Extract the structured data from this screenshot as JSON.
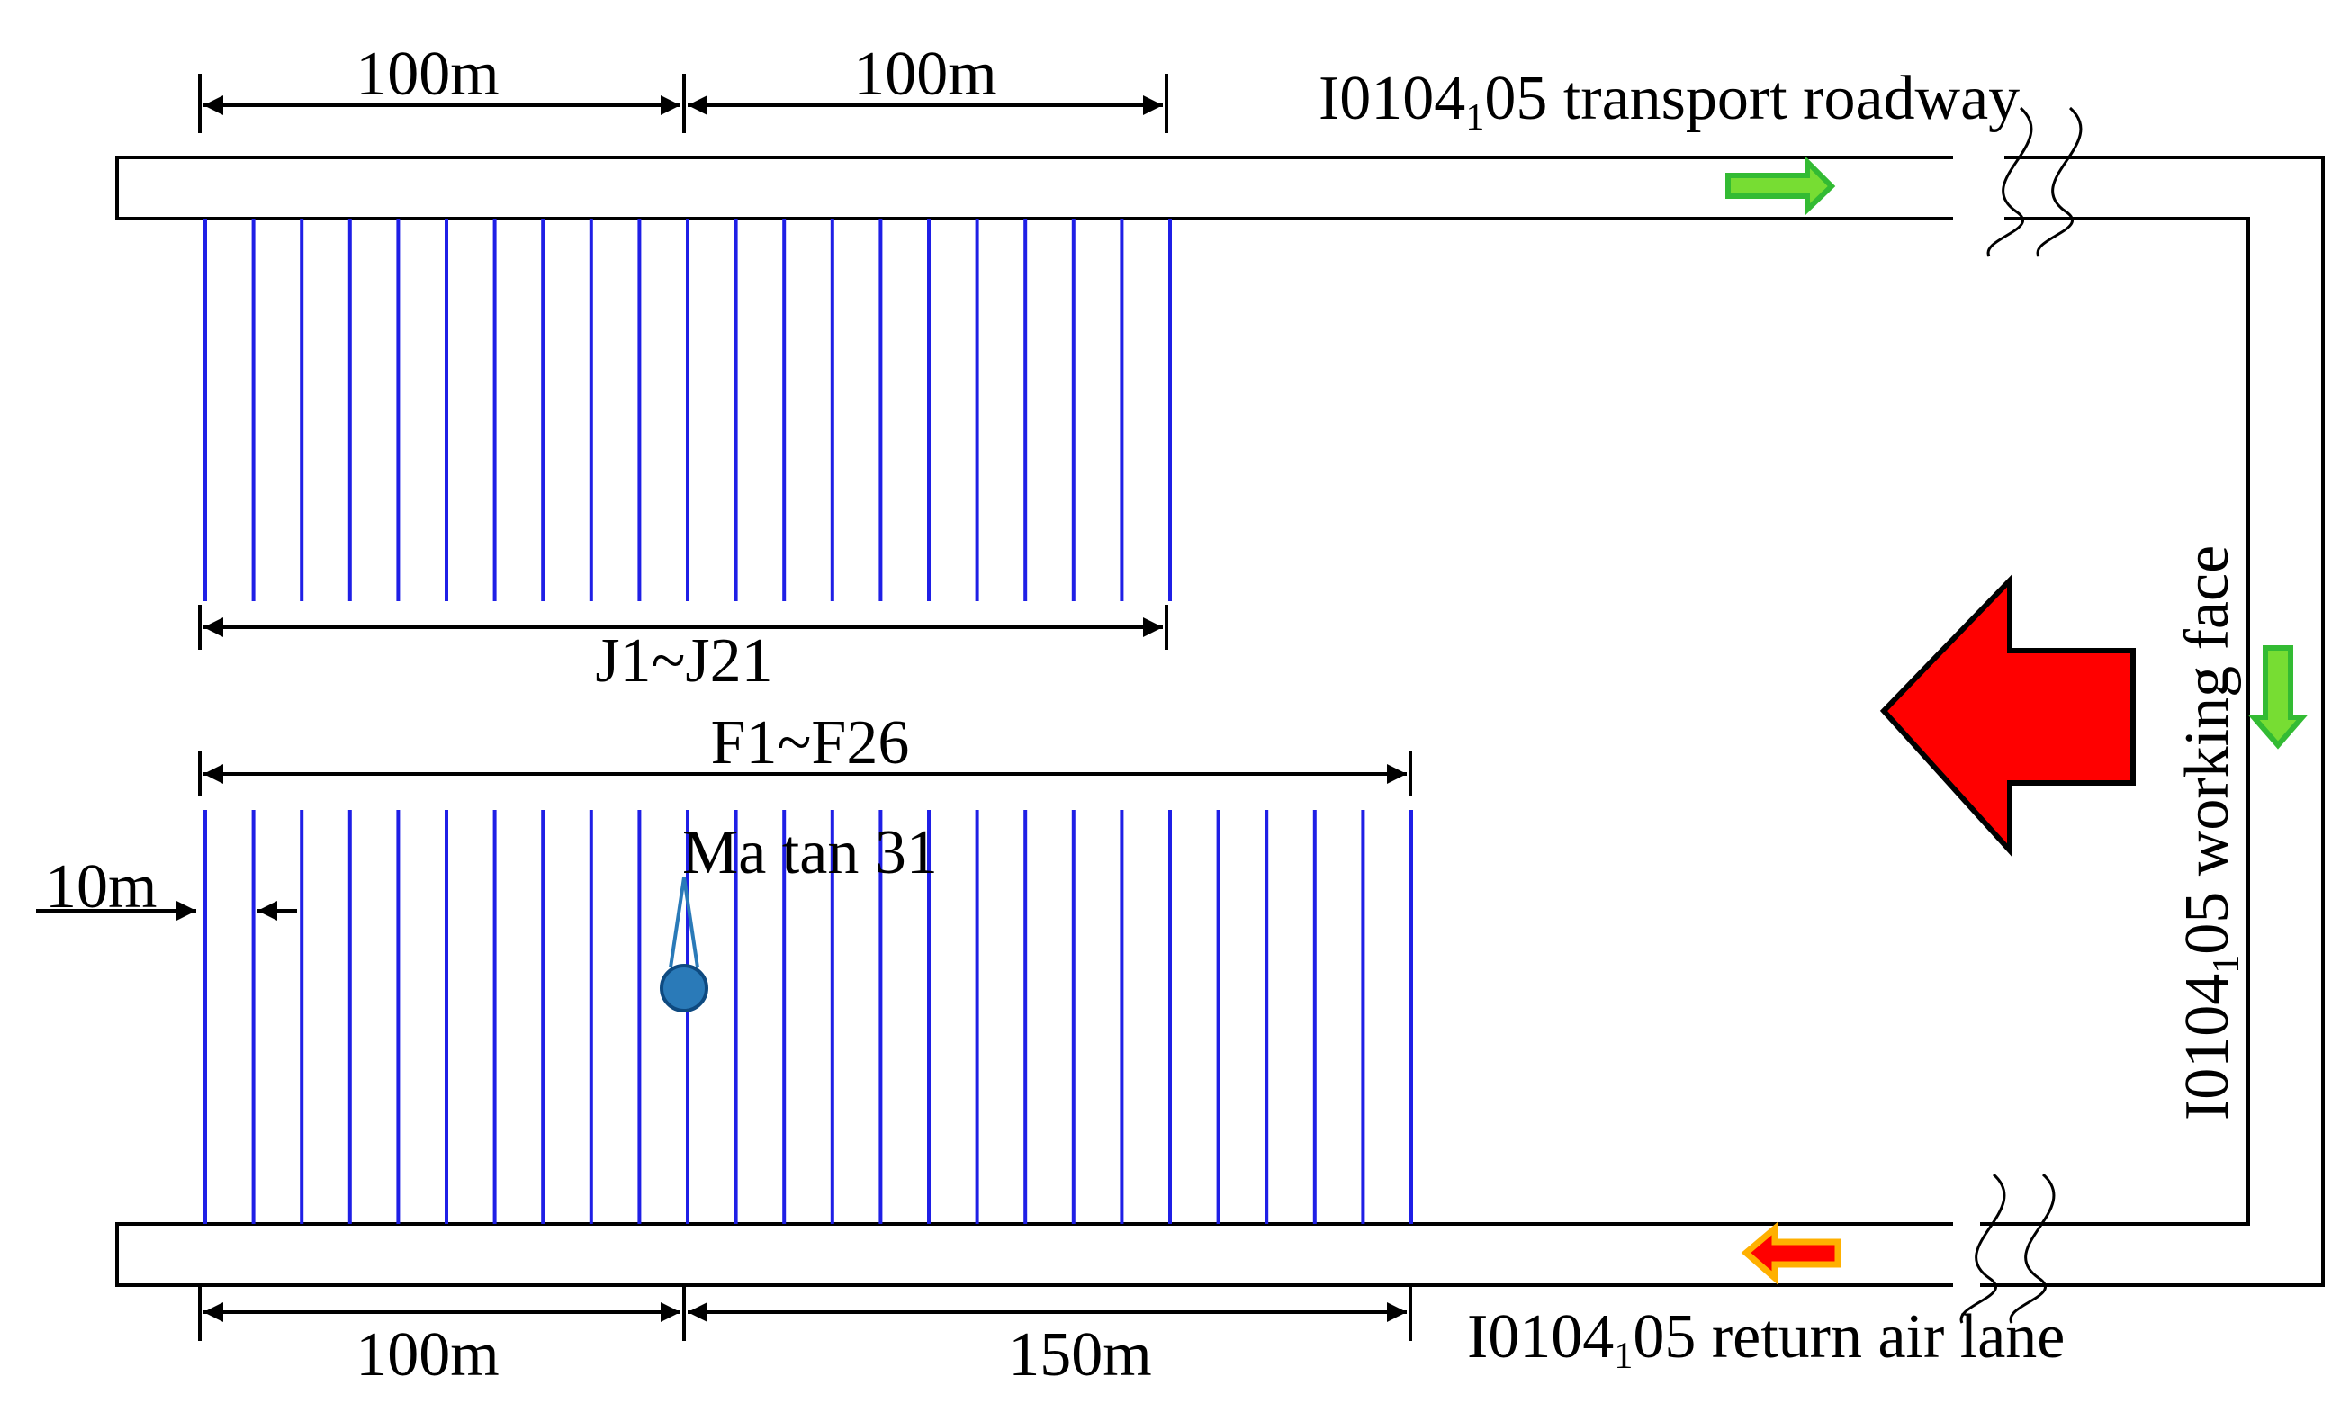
{
  "labels": {
    "top_left_dim": "100m",
    "top_right_dim": "100m",
    "bottom_left_dim": "100m",
    "bottom_right_dim": "150m",
    "spacing_dim": "10m",
    "j_range": "J1~J21",
    "f_range": "F1~F26",
    "well": "Ma tan 31",
    "transport": {
      "pre": "I0104",
      "sub": "1",
      "post": "05 transport roadway"
    },
    "return_air": {
      "pre": "I0104",
      "sub": "1",
      "post": "05 return air lane"
    },
    "working_face": {
      "pre": "I0104",
      "sub": "1",
      "post": "05 working face"
    }
  },
  "boreholes": {
    "j_count": 21,
    "f_count": 26,
    "color": "#1f1fe6"
  },
  "colors": {
    "advance_arrow": "#ff0000",
    "intake_arrow": "#33cc33",
    "intake_arrow_fill": "#77dd33",
    "return_arrow_outline": "#ffb000",
    "return_arrow_fill": "#ff0000",
    "well": "#2a7ab8"
  }
}
